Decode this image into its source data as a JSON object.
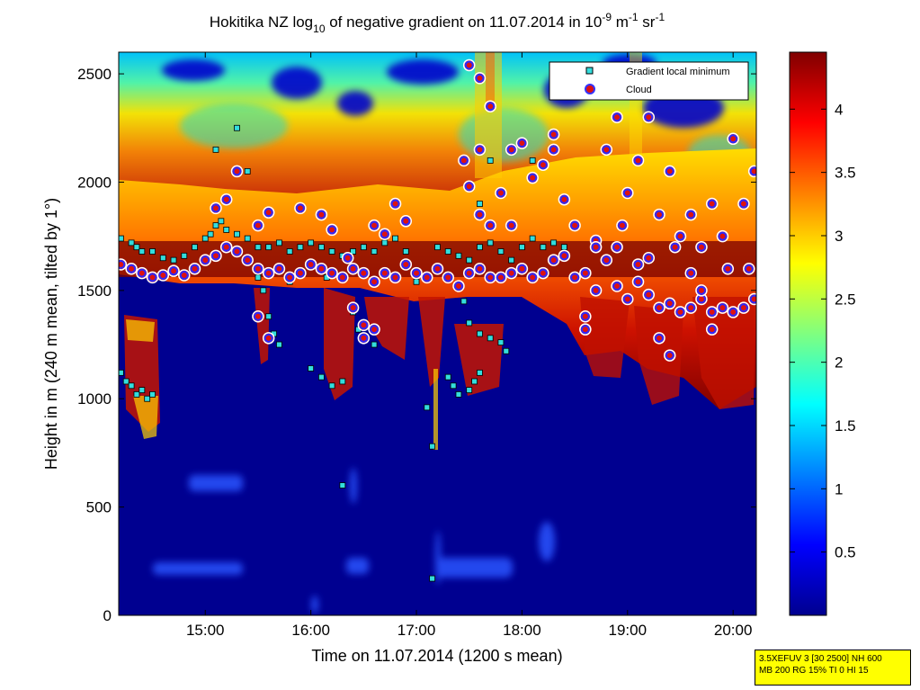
{
  "chart_data": {
    "type": "heatmap",
    "title": {
      "prefix": "Hokitika NZ log",
      "log_base": "10",
      "middle": " of negative gradient on 11.07.2014 in 10",
      "exp1": "-9",
      "unit1": " m",
      "exp2": "-1",
      "unit2": " sr",
      "exp3": "-1"
    },
    "xlabel": "Time on 11.07.2014 (1200 s mean)",
    "ylabel": "Height in m (240 m mean, tilted by 1°)",
    "xlim_hours": [
      14.18,
      20.22
    ],
    "ylim": [
      0,
      2600
    ],
    "x_ticks": [
      {
        "h": 15,
        "label": "15:00"
      },
      {
        "h": 16,
        "label": "16:00"
      },
      {
        "h": 17,
        "label": "17:00"
      },
      {
        "h": 18,
        "label": "18:00"
      },
      {
        "h": 19,
        "label": "19:00"
      },
      {
        "h": 20,
        "label": "20:00"
      }
    ],
    "y_ticks": [
      {
        "v": 0,
        "label": "0"
      },
      {
        "v": 500,
        "label": "500"
      },
      {
        "v": 1000,
        "label": "1000"
      },
      {
        "v": 1500,
        "label": "1500"
      },
      {
        "v": 2000,
        "label": "2000"
      },
      {
        "v": 2500,
        "label": "2500"
      }
    ],
    "colorbar": {
      "range": [
        0,
        4.45
      ],
      "ticks": [
        {
          "v": 0.5,
          "label": "0.5"
        },
        {
          "v": 1,
          "label": "1"
        },
        {
          "v": 1.5,
          "label": "1.5"
        },
        {
          "v": 2,
          "label": "2"
        },
        {
          "v": 2.5,
          "label": "2.5"
        },
        {
          "v": 3,
          "label": "3"
        },
        {
          "v": 3.5,
          "label": "3.5"
        },
        {
          "v": 4,
          "label": "4"
        }
      ]
    },
    "legend": {
      "position": "top-right",
      "entries": [
        {
          "label": "Gradient local minimum",
          "marker": "square",
          "color": "#33dddd"
        },
        {
          "label": "Cloud",
          "marker": "circle",
          "color": "#dd1111"
        }
      ]
    },
    "series": [
      {
        "name": "Cloud",
        "marker": "circle",
        "points": [
          [
            14.2,
            1620
          ],
          [
            14.3,
            1600
          ],
          [
            14.4,
            1580
          ],
          [
            14.5,
            1560
          ],
          [
            14.6,
            1570
          ],
          [
            14.7,
            1590
          ],
          [
            14.8,
            1570
          ],
          [
            14.9,
            1600
          ],
          [
            15.0,
            1640
          ],
          [
            15.1,
            1660
          ],
          [
            15.2,
            1700
          ],
          [
            15.3,
            1680
          ],
          [
            15.4,
            1640
          ],
          [
            15.5,
            1600
          ],
          [
            15.6,
            1580
          ],
          [
            15.7,
            1600
          ],
          [
            15.8,
            1560
          ],
          [
            15.9,
            1580
          ],
          [
            16.0,
            1620
          ],
          [
            16.1,
            1600
          ],
          [
            16.2,
            1580
          ],
          [
            16.3,
            1560
          ],
          [
            16.4,
            1600
          ],
          [
            16.5,
            1580
          ],
          [
            16.6,
            1540
          ],
          [
            16.7,
            1580
          ],
          [
            16.8,
            1560
          ],
          [
            16.9,
            1620
          ],
          [
            17.0,
            1580
          ],
          [
            17.1,
            1560
          ],
          [
            17.2,
            1600
          ],
          [
            17.3,
            1560
          ],
          [
            17.4,
            1520
          ],
          [
            17.5,
            1580
          ],
          [
            17.6,
            1600
          ],
          [
            17.7,
            1560
          ],
          [
            17.8,
            1560
          ],
          [
            17.9,
            1580
          ],
          [
            18.0,
            1600
          ],
          [
            18.1,
            1560
          ],
          [
            18.2,
            1580
          ],
          [
            18.3,
            1640
          ],
          [
            18.4,
            1660
          ],
          [
            18.5,
            1560
          ],
          [
            18.6,
            1580
          ],
          [
            18.7,
            1500
          ],
          [
            18.8,
            1640
          ],
          [
            18.9,
            1520
          ],
          [
            19.0,
            1460
          ],
          [
            19.1,
            1540
          ],
          [
            19.2,
            1480
          ],
          [
            19.3,
            1420
          ],
          [
            19.4,
            1440
          ],
          [
            19.5,
            1400
          ],
          [
            19.6,
            1420
          ],
          [
            19.7,
            1460
          ],
          [
            19.8,
            1400
          ],
          [
            19.9,
            1420
          ],
          [
            20.0,
            1400
          ],
          [
            20.1,
            1420
          ],
          [
            20.2,
            1460
          ],
          [
            15.1,
            1880
          ],
          [
            15.2,
            1920
          ],
          [
            15.3,
            2050
          ],
          [
            15.5,
            1800
          ],
          [
            15.6,
            1860
          ],
          [
            15.9,
            1880
          ],
          [
            16.1,
            1850
          ],
          [
            16.2,
            1780
          ],
          [
            16.5,
            1340
          ],
          [
            16.6,
            1800
          ],
          [
            16.7,
            1760
          ],
          [
            16.8,
            1900
          ],
          [
            17.5,
            1980
          ],
          [
            17.6,
            2150
          ],
          [
            17.7,
            2350
          ],
          [
            17.8,
            1950
          ],
          [
            17.9,
            1800
          ],
          [
            18.0,
            2180
          ],
          [
            18.2,
            2080
          ],
          [
            18.3,
            2220
          ],
          [
            18.4,
            1920
          ],
          [
            18.5,
            1800
          ],
          [
            18.6,
            1380
          ],
          [
            18.7,
            1730
          ],
          [
            18.8,
            2150
          ],
          [
            18.9,
            2300
          ],
          [
            19.0,
            1950
          ],
          [
            19.1,
            2100
          ],
          [
            19.2,
            2300
          ],
          [
            19.3,
            1850
          ],
          [
            19.4,
            2050
          ],
          [
            19.5,
            1750
          ],
          [
            19.6,
            1850
          ],
          [
            19.7,
            1700
          ],
          [
            19.8,
            1900
          ],
          [
            19.9,
            1750
          ],
          [
            20.0,
            2200
          ],
          [
            20.1,
            1900
          ],
          [
            20.2,
            2050
          ],
          [
            15.5,
            1380
          ],
          [
            15.6,
            1280
          ],
          [
            16.4,
            1420
          ],
          [
            16.5,
            1280
          ],
          [
            16.6,
            1320
          ],
          [
            17.6,
            1850
          ],
          [
            17.7,
            1800
          ],
          [
            18.6,
            1320
          ],
          [
            19.3,
            1280
          ],
          [
            19.4,
            1200
          ],
          [
            19.6,
            1580
          ],
          [
            19.8,
            1320
          ],
          [
            18.9,
            1700
          ],
          [
            19.1,
            1620
          ],
          [
            17.5,
            2540
          ],
          [
            17.6,
            2480
          ],
          [
            17.9,
            2150
          ],
          [
            18.1,
            2020
          ],
          [
            18.3,
            2150
          ],
          [
            18.7,
            1700
          ],
          [
            18.95,
            1800
          ],
          [
            19.2,
            1650
          ],
          [
            19.45,
            1700
          ],
          [
            19.7,
            1500
          ],
          [
            19.95,
            1600
          ],
          [
            20.15,
            1600
          ],
          [
            17.45,
            2100
          ],
          [
            16.9,
            1820
          ],
          [
            16.35,
            1650
          ]
        ]
      },
      {
        "name": "Gradient local minimum",
        "marker": "square",
        "points": [
          [
            14.2,
            1740
          ],
          [
            14.3,
            1720
          ],
          [
            14.35,
            1700
          ],
          [
            14.4,
            1680
          ],
          [
            14.5,
            1680
          ],
          [
            14.6,
            1650
          ],
          [
            14.7,
            1640
          ],
          [
            14.8,
            1660
          ],
          [
            14.9,
            1700
          ],
          [
            15.0,
            1740
          ],
          [
            15.05,
            1760
          ],
          [
            15.1,
            1800
          ],
          [
            15.15,
            1820
          ],
          [
            15.2,
            1780
          ],
          [
            15.3,
            1760
          ],
          [
            15.4,
            1740
          ],
          [
            15.5,
            1700
          ],
          [
            15.6,
            1700
          ],
          [
            15.7,
            1720
          ],
          [
            15.8,
            1680
          ],
          [
            15.9,
            1700
          ],
          [
            16.0,
            1720
          ],
          [
            16.1,
            1700
          ],
          [
            16.2,
            1680
          ],
          [
            16.3,
            1660
          ],
          [
            16.4,
            1680
          ],
          [
            16.5,
            1700
          ],
          [
            16.6,
            1680
          ],
          [
            16.7,
            1720
          ],
          [
            16.8,
            1740
          ],
          [
            16.9,
            1680
          ],
          [
            17.2,
            1700
          ],
          [
            17.3,
            1680
          ],
          [
            17.4,
            1660
          ],
          [
            17.5,
            1640
          ],
          [
            17.6,
            1700
          ],
          [
            17.7,
            1720
          ],
          [
            17.8,
            1680
          ],
          [
            17.9,
            1640
          ],
          [
            18.0,
            1700
          ],
          [
            18.1,
            1740
          ],
          [
            18.2,
            1700
          ],
          [
            18.3,
            1720
          ],
          [
            18.4,
            1700
          ],
          [
            15.5,
            1560
          ],
          [
            15.55,
            1500
          ],
          [
            15.6,
            1380
          ],
          [
            15.65,
            1300
          ],
          [
            15.7,
            1250
          ],
          [
            16.4,
            1400
          ],
          [
            16.45,
            1320
          ],
          [
            16.5,
            1280
          ],
          [
            16.6,
            1250
          ],
          [
            17.45,
            1450
          ],
          [
            17.5,
            1350
          ],
          [
            17.6,
            1300
          ],
          [
            17.7,
            1280
          ],
          [
            17.8,
            1260
          ],
          [
            17.85,
            1220
          ],
          [
            14.2,
            1120
          ],
          [
            14.25,
            1080
          ],
          [
            14.3,
            1060
          ],
          [
            14.35,
            1020
          ],
          [
            14.4,
            1040
          ],
          [
            14.45,
            1000
          ],
          [
            14.5,
            1020
          ],
          [
            16.0,
            1140
          ],
          [
            16.1,
            1100
          ],
          [
            16.2,
            1060
          ],
          [
            16.3,
            1080
          ],
          [
            17.3,
            1100
          ],
          [
            17.35,
            1060
          ],
          [
            17.4,
            1020
          ],
          [
            17.5,
            1040
          ],
          [
            17.55,
            1080
          ],
          [
            17.6,
            1120
          ],
          [
            17.15,
            170
          ],
          [
            17.15,
            780
          ],
          [
            17.1,
            960
          ],
          [
            16.3,
            600
          ],
          [
            15.1,
            2150
          ],
          [
            15.3,
            2250
          ],
          [
            15.4,
            2050
          ],
          [
            17.6,
            1900
          ],
          [
            17.7,
            2100
          ],
          [
            18.1,
            2100
          ],
          [
            16.15,
            1560
          ],
          [
            15.8,
            1540
          ],
          [
            17.0,
            1540
          ]
        ]
      }
    ]
  },
  "info_box": {
    "line1": "3.5XEFUV 3 [30 2500] NH 600",
    "line2": "MB 200 RG 15% TI 0 HI 15"
  }
}
